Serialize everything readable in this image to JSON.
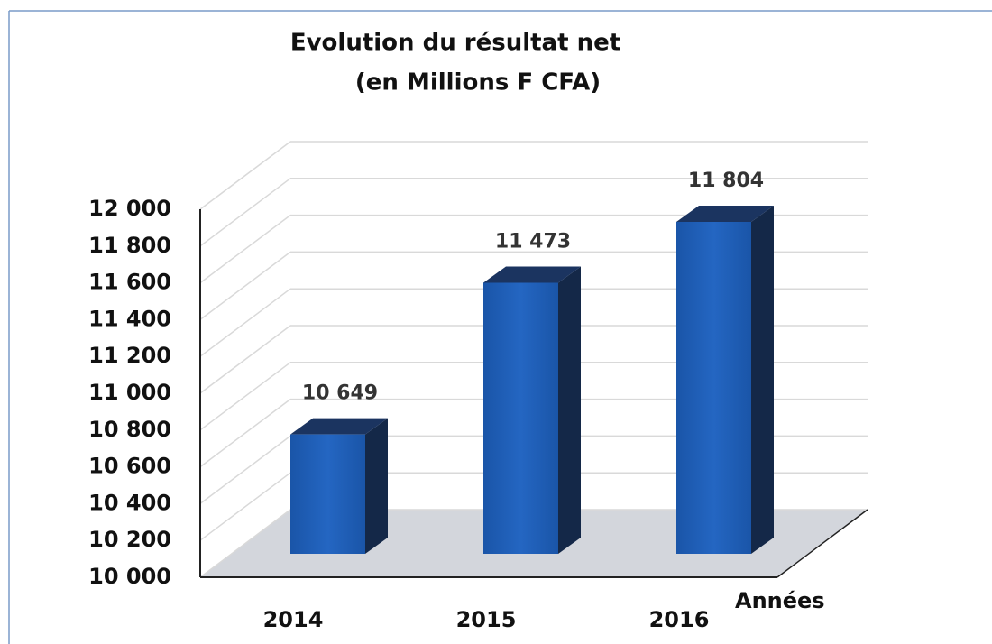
{
  "chart_data": {
    "type": "bar3d",
    "title": "Evolution du résultat net",
    "subtitle": "(en Millions F CFA)",
    "x_label": "Années",
    "categories": [
      "2014",
      "2015",
      "2016"
    ],
    "values": [
      10649,
      11473,
      11804
    ],
    "value_labels": [
      "10 649",
      "11 473",
      "11 804"
    ],
    "color": "#1f5fb5",
    "ylim": [
      10000,
      12000
    ],
    "yticks": [
      {
        "value": 10000,
        "label": "10 000"
      },
      {
        "value": 10200,
        "label": "10 200"
      },
      {
        "value": 10400,
        "label": "10 400"
      },
      {
        "value": 10600,
        "label": "10 600"
      },
      {
        "value": 10800,
        "label": "10 800"
      },
      {
        "value": 11000,
        "label": "11 000"
      },
      {
        "value": 11200,
        "label": "11 200"
      },
      {
        "value": 11400,
        "label": "11 400"
      },
      {
        "value": 11600,
        "label": "11 600"
      },
      {
        "value": 11800,
        "label": "11 800"
      },
      {
        "value": 12000,
        "label": "12 000"
      }
    ],
    "grid": true
  }
}
